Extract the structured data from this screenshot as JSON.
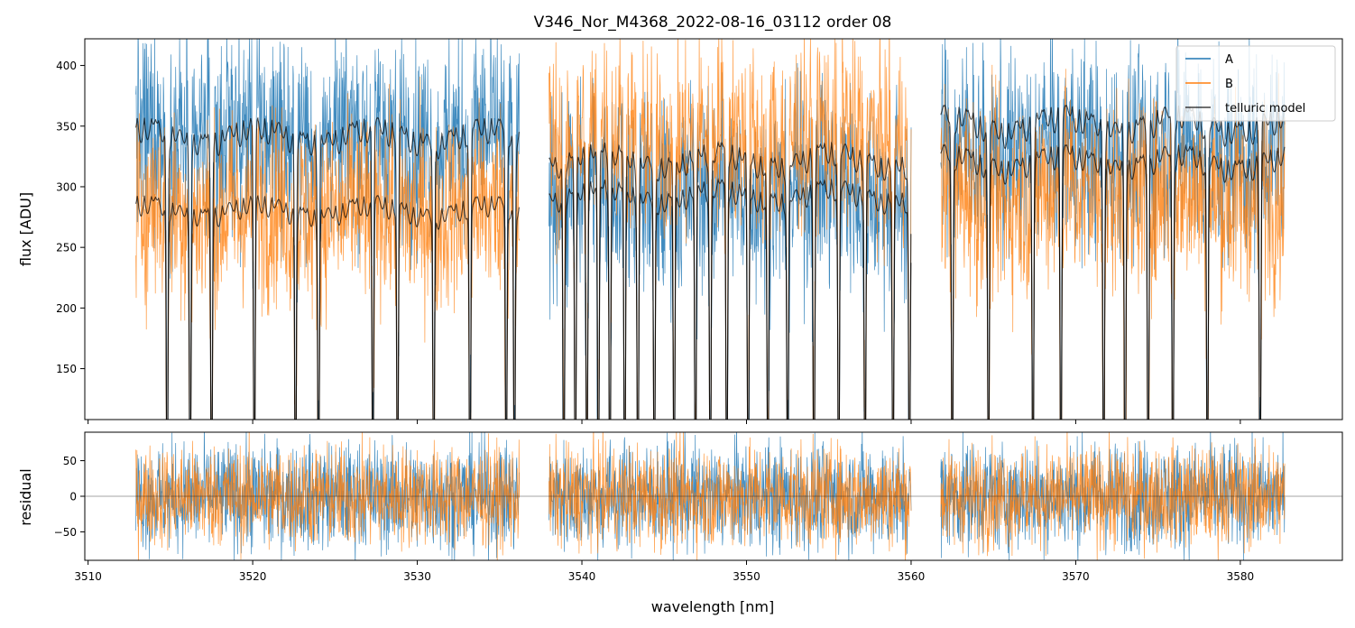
{
  "chart_data": [
    {
      "panel": "spectrum",
      "type": "line",
      "title": "V346_Nor_M4368_2022-08-16_03112  order 08",
      "xlabel": "",
      "ylabel": "flux [ADU]",
      "xlim": [
        3509.8,
        3586.2
      ],
      "ylim": [
        108,
        422
      ],
      "yticks": [
        150,
        200,
        250,
        300,
        350,
        400
      ],
      "xticks": [
        3510,
        3520,
        3530,
        3540,
        3550,
        3560,
        3570,
        3580
      ],
      "x_tick_labels_visible": false,
      "segments": [
        [
          3512.9,
          3536.2
        ],
        [
          3538.0,
          3560.0
        ],
        [
          3561.8,
          3582.7
        ]
      ],
      "series": [
        {
          "name": "A",
          "color": "#1f77b4",
          "levels": [
            350,
            305,
            340
          ],
          "noise": 42,
          "role": "data"
        },
        {
          "name": "B",
          "color": "#ff7f0e",
          "levels": [
            287,
            350,
            300
          ],
          "noise": 40,
          "role": "data"
        },
        {
          "name": "telluric model",
          "color": "#000000",
          "levels_high": [
            350,
            330,
            360
          ],
          "levels_low": [
            287,
            300,
            328
          ],
          "role": "model"
        }
      ],
      "telluric_lines_nm": [
        3514.8,
        3516.2,
        3517.5,
        3520.1,
        3522.6,
        3524.0,
        3527.3,
        3528.8,
        3531.0,
        3533.2,
        3535.4,
        3535.9,
        3538.9,
        3539.6,
        3540.3,
        3541.0,
        3541.7,
        3542.6,
        3543.4,
        3544.4,
        3545.6,
        3546.9,
        3547.8,
        3548.8,
        3550.1,
        3551.3,
        3552.5,
        3554.1,
        3555.6,
        3557.2,
        3558.9,
        3559.9,
        3562.5,
        3564.7,
        3567.4,
        3569.1,
        3571.7,
        3573.0,
        3574.4,
        3575.9,
        3578.0,
        3581.2
      ],
      "legend": {
        "position": "top-right",
        "entries": [
          "A",
          "B",
          "telluric model"
        ]
      }
    },
    {
      "panel": "residual",
      "type": "line",
      "title": "",
      "xlabel": "wavelength [nm]",
      "ylabel": "residual",
      "xlim": [
        3509.8,
        3586.2
      ],
      "ylim": [
        -90,
        90
      ],
      "yticks": [
        -50,
        0,
        50
      ],
      "xticks": [
        3510,
        3520,
        3530,
        3540,
        3550,
        3560,
        3570,
        3580
      ],
      "segments": [
        [
          3512.9,
          3536.2
        ],
        [
          3538.0,
          3560.0
        ],
        [
          3561.8,
          3582.7
        ]
      ],
      "series": [
        {
          "name": "A",
          "color": "#1f77b4",
          "noise": 38
        },
        {
          "name": "B",
          "color": "#ff7f0e",
          "noise": 36
        }
      ],
      "zero_line": 0
    }
  ]
}
